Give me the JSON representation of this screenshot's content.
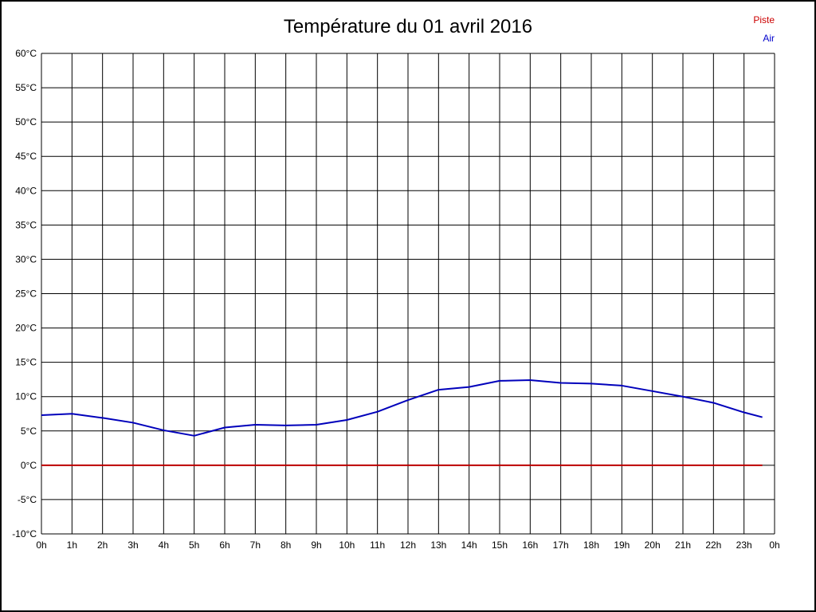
{
  "header": {
    "title": "Température du 01 avril 2016"
  },
  "legend": {
    "items": [
      {
        "label": "Piste",
        "color": "#cc0000"
      },
      {
        "label": "Air",
        "color": "#0000cc"
      }
    ]
  },
  "chart_data": {
    "type": "line",
    "title": "Température du 01 avril 2016",
    "x_unit": "hour",
    "x": [
      0,
      1,
      2,
      3,
      4,
      5,
      6,
      7,
      8,
      9,
      10,
      11,
      12,
      13,
      14,
      15,
      16,
      17,
      18,
      19,
      20,
      21,
      22,
      23,
      23.6
    ],
    "x_tick_labels": [
      "0h",
      "1h",
      "2h",
      "3h",
      "4h",
      "5h",
      "6h",
      "7h",
      "8h",
      "9h",
      "10h",
      "11h",
      "12h",
      "13h",
      "14h",
      "15h",
      "16h",
      "17h",
      "18h",
      "19h",
      "20h",
      "21h",
      "22h",
      "23h",
      "0h"
    ],
    "xlim_hours": [
      0,
      24
    ],
    "ylim": [
      -10,
      60
    ],
    "ytick_step": 5,
    "ytick_suffix": "°C",
    "grid": true,
    "grid_color": "#000000",
    "legend_position": "top-right",
    "series": [
      {
        "name": "Piste",
        "color": "#bb0000",
        "width": 2,
        "values": [
          0,
          0,
          0,
          0,
          0,
          0,
          0,
          0,
          0,
          0,
          0,
          0,
          0,
          0,
          0,
          0,
          0,
          0,
          0,
          0,
          0,
          0,
          0,
          0,
          0
        ]
      },
      {
        "name": "Air",
        "color": "#0000bb",
        "width": 2,
        "values": [
          7.3,
          7.5,
          6.9,
          6.2,
          5.1,
          4.3,
          5.5,
          5.9,
          5.8,
          5.9,
          6.6,
          7.8,
          9.5,
          11.0,
          11.4,
          12.3,
          12.4,
          12.0,
          11.9,
          11.6,
          10.8,
          10.0,
          9.1,
          7.7,
          7.0
        ]
      }
    ]
  }
}
